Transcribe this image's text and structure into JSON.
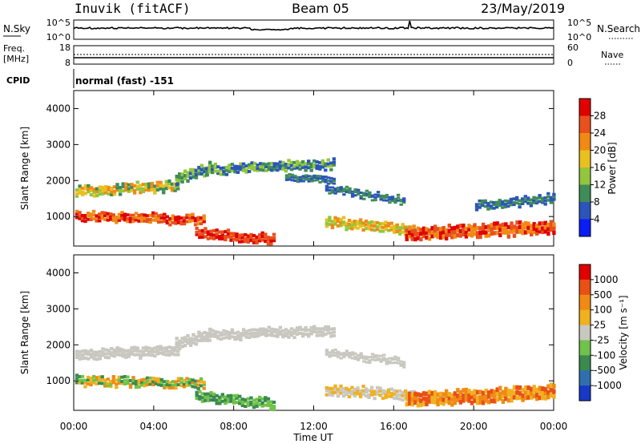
{
  "header": {
    "station": "Inuvik (fitACF)",
    "beam": "Beam 05",
    "date": "23/May/2019"
  },
  "nsky_panel": {
    "left_label": "N.Sky",
    "right_label": "N.Search",
    "left_ticks": [
      "10^5",
      "10^0"
    ],
    "right_ticks": [
      "10^5",
      "10^0"
    ]
  },
  "freq_panel": {
    "left_label_1": "Freq.",
    "left_label_2": "[MHz]",
    "right_label": "Nave",
    "left_ticks": [
      "18",
      "8"
    ],
    "right_ticks": [
      "60",
      "0"
    ]
  },
  "cpid": {
    "label": "CPID",
    "value": "normal (fast) -151"
  },
  "x_axis": {
    "label": "Time UT",
    "ticks": [
      "00:00",
      "04:00",
      "08:00",
      "12:00",
      "16:00",
      "20:00",
      "00:00"
    ]
  },
  "chart_data": [
    {
      "type": "heatmap",
      "name": "power",
      "ylabel": "Slant Range [km]",
      "yticks": [
        "1000",
        "2000",
        "3000",
        "4000"
      ],
      "ylim": [
        180,
        4500
      ],
      "xlim": [
        0,
        24
      ],
      "colorbar_label": "Power [dB]",
      "colorbar_ticks": [
        "4",
        "8",
        "12",
        "16",
        "20",
        "24",
        "28"
      ],
      "colorbar_colors": [
        "#0a1df5",
        "#2b55b8",
        "#3f8c58",
        "#93c53d",
        "#e8c020",
        "#f08a14",
        "#e8501c",
        "#e00000"
      ]
    },
    {
      "type": "heatmap",
      "name": "velocity",
      "ylabel": "Slant Range [km]",
      "yticks": [
        "1000",
        "2000",
        "3000",
        "4000"
      ],
      "ylim": [
        180,
        4500
      ],
      "xlim": [
        0,
        24
      ],
      "colorbar_label": "Velocity [m s⁻¹]",
      "colorbar_ticks": [
        "1000",
        "500",
        "100",
        "25",
        "-25",
        "-100",
        "-500",
        "-1000"
      ],
      "colorbar_colors": [
        "#1838c8",
        "#2f6fb0",
        "#3a8a50",
        "#70c24a",
        "#c8c8c0",
        "#f0b020",
        "#f08a14",
        "#e85015",
        "#e00000"
      ]
    }
  ]
}
